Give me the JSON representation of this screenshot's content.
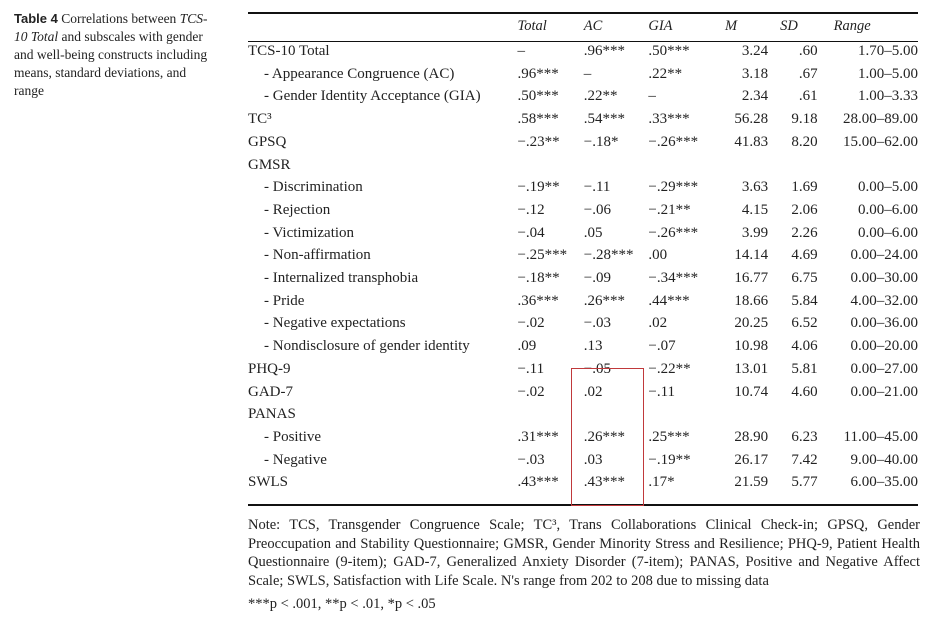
{
  "caption": {
    "label": "Table 4",
    "text_1": "Correlations between",
    "text_italic": "TCS-10 Total",
    "text_2": "and subscales with gender and well-being constructs including means, standard deviations, and range"
  },
  "table": {
    "headers": {
      "label": "",
      "total": "Total",
      "ac": "AC",
      "gia": "GIA",
      "m": "M",
      "sd": "SD",
      "range": "Range"
    },
    "rows": [
      {
        "label": "TCS-10 Total",
        "total": "–",
        "ac": ".96***",
        "gia": ".50***",
        "m": "3.24",
        "sd": ".60",
        "range": "1.70–5.00"
      },
      {
        "label": "- Appearance Congruence (AC)",
        "total": ".96***",
        "ac": "–",
        "gia": ".22**",
        "m": "3.18",
        "sd": ".67",
        "range": "1.00–5.00"
      },
      {
        "label": "- Gender Identity Acceptance (GIA)",
        "total": ".50***",
        "ac": ".22**",
        "gia": "–",
        "m": "2.34",
        "sd": ".61",
        "range": "1.00–3.33"
      },
      {
        "label": "TC³",
        "total": ".58***",
        "ac": ".54***",
        "gia": ".33***",
        "m": "56.28",
        "sd": "9.18",
        "range": "28.00–89.00"
      },
      {
        "label": "GPSQ",
        "total": "−.23**",
        "ac": "−.18*",
        "gia": "−.26***",
        "m": "41.83",
        "sd": "8.20",
        "range": "15.00–62.00"
      },
      {
        "label": "GMSR",
        "total": "",
        "ac": "",
        "gia": "",
        "m": "",
        "sd": "",
        "range": ""
      },
      {
        "label": "- Discrimination",
        "total": "−.19**",
        "ac": "−.11",
        "gia": "−.29***",
        "m": "3.63",
        "sd": "1.69",
        "range": "0.00–5.00"
      },
      {
        "label": "- Rejection",
        "total": "−.12",
        "ac": "−.06",
        "gia": "−.21**",
        "m": "4.15",
        "sd": "2.06",
        "range": "0.00–6.00"
      },
      {
        "label": "- Victimization",
        "total": "−.04",
        "ac": ".05",
        "gia": "−.26***",
        "m": "3.99",
        "sd": "2.26",
        "range": "0.00–6.00"
      },
      {
        "label": "- Non-affirmation",
        "total": "−.25***",
        "ac": "−.28***",
        "gia": ".00",
        "m": "14.14",
        "sd": "4.69",
        "range": "0.00–24.00"
      },
      {
        "label": "- Internalized transphobia",
        "total": "−.18**",
        "ac": "−.09",
        "gia": "−.34***",
        "m": "16.77",
        "sd": "6.75",
        "range": "0.00–30.00"
      },
      {
        "label": "- Pride",
        "total": ".36***",
        "ac": ".26***",
        "gia": ".44***",
        "m": "18.66",
        "sd": "5.84",
        "range": "4.00–32.00"
      },
      {
        "label": "- Negative expectations",
        "total": "−.02",
        "ac": "−.03",
        "gia": ".02",
        "m": "20.25",
        "sd": "6.52",
        "range": "0.00–36.00"
      },
      {
        "label": "- Nondisclosure of gender identity",
        "total": ".09",
        "ac": ".13",
        "gia": "−.07",
        "m": "10.98",
        "sd": "4.06",
        "range": "0.00–20.00"
      },
      {
        "label": "PHQ-9",
        "total": "−.11",
        "ac": "−.05",
        "gia": "−.22**",
        "m": "13.01",
        "sd": "5.81",
        "range": "0.00–27.00"
      },
      {
        "label": "GAD-7",
        "total": "−.02",
        "ac": ".02",
        "gia": "−.11",
        "m": "10.74",
        "sd": "4.60",
        "range": "0.00–21.00"
      },
      {
        "label": "PANAS",
        "total": "",
        "ac": "",
        "gia": "",
        "m": "",
        "sd": "",
        "range": ""
      },
      {
        "label": "- Positive",
        "total": ".31***",
        "ac": ".26***",
        "gia": ".25***",
        "m": "28.90",
        "sd": "6.23",
        "range": "11.00–45.00"
      },
      {
        "label": "- Negative",
        "total": "−.03",
        "ac": ".03",
        "gia": "−.19**",
        "m": "26.17",
        "sd": "7.42",
        "range": "9.00–40.00"
      },
      {
        "label": "SWLS",
        "total": ".43***",
        "ac": ".43***",
        "gia": ".17*",
        "m": "21.59",
        "sd": "5.77",
        "range": "6.00–35.00"
      }
    ]
  },
  "note": "Note: TCS, Transgender Congruence Scale; TC³, Trans Collaborations Clinical Check-in; GPSQ, Gender Preoccupation and Stability Questionnaire; GMSR, Gender Minority Stress and Resilience; PHQ-9, Patient Health Questionnaire (9-item); GAD-7, Generalized Anxiety Disorder (7-item); PANAS, Positive and Negative Affect Scale; SWLS, Satisfaction with Life Scale. N's range from 202 to 208 due to missing data",
  "significance": "***p < .001, **p < .01, *p < .05",
  "colors": {
    "highlight_box": "#c0393b",
    "text": "#222222"
  }
}
